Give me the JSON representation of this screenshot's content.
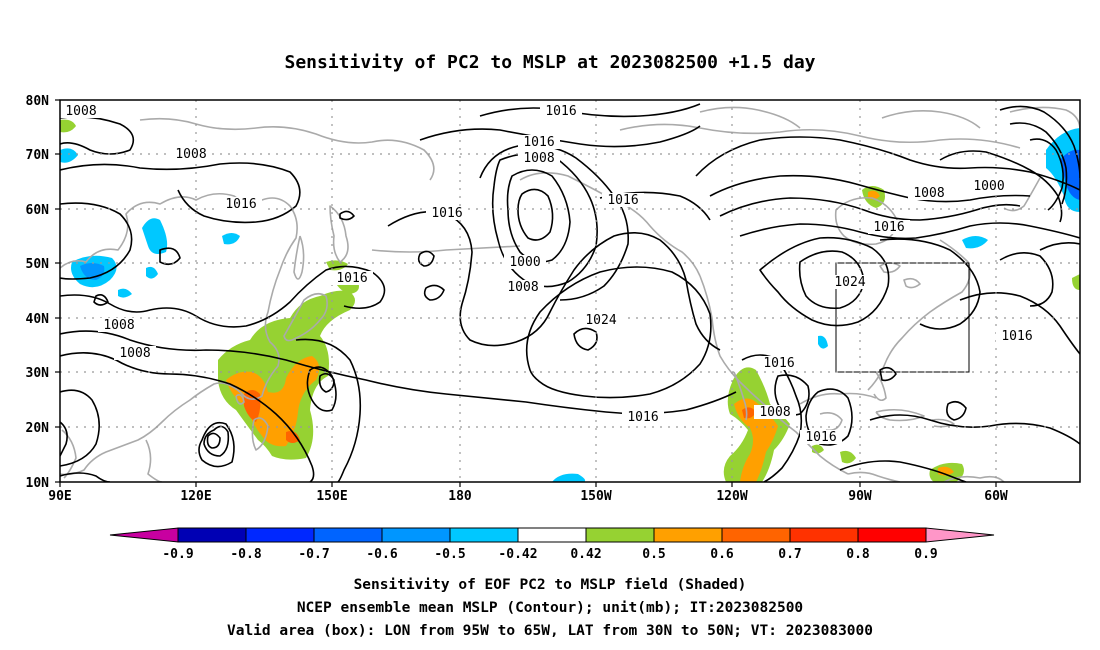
{
  "title": "Sensitivity of PC2 to MSLP at 2023082500 +1.5 day",
  "map": {
    "lat_labels": [
      "80N",
      "70N",
      "60N",
      "50N",
      "40N",
      "30N",
      "20N",
      "10N"
    ],
    "lon_labels": [
      "90E",
      "120E",
      "150E",
      "180",
      "150W",
      "120W",
      "90W",
      "60W"
    ],
    "valid_box": {
      "lon": [
        "95W",
        "65W"
      ],
      "lat": [
        "30N",
        "50N"
      ]
    },
    "contour_labels": [
      {
        "text": "1008",
        "region": "far northwest"
      },
      {
        "text": "1008",
        "region": "Siberia"
      },
      {
        "text": "1016",
        "region": "Siberia south"
      },
      {
        "text": "1016",
        "region": "Kamchatka"
      },
      {
        "text": "1008",
        "region": "China north"
      },
      {
        "text": "1008",
        "region": "China south"
      },
      {
        "text": "1016",
        "region": "Bering Sea"
      },
      {
        "text": "1016",
        "region": "Arctic top"
      },
      {
        "text": "1016",
        "region": "Gulf of Alaska north"
      },
      {
        "text": "1008",
        "region": "Gulf of Alaska low ring"
      },
      {
        "text": "1000",
        "region": "Gulf of Alaska low center"
      },
      {
        "text": "1008",
        "region": "Gulf of Alaska low south"
      },
      {
        "text": "1016",
        "region": "Alaska panhandle"
      },
      {
        "text": "1024",
        "region": "North Pacific high"
      },
      {
        "text": "1016",
        "region": "Subtropical Pacific"
      },
      {
        "text": "1016",
        "region": "Baja California"
      },
      {
        "text": "1008",
        "region": "Mexico west"
      },
      {
        "text": "1016",
        "region": "Mexico south"
      },
      {
        "text": "1008",
        "region": "Hudson Bay"
      },
      {
        "text": "1000",
        "region": "Labrador"
      },
      {
        "text": "1016",
        "region": "Great Lakes north"
      },
      {
        "text": "1024",
        "region": "Great Lakes"
      },
      {
        "text": "1016",
        "region": "Western Atlantic"
      }
    ]
  },
  "colorbar": {
    "labels": [
      "-0.9",
      "-0.8",
      "-0.7",
      "-0.6",
      "-0.5",
      "-0.42",
      "0.42",
      "0.5",
      "0.6",
      "0.7",
      "0.8",
      "0.9"
    ],
    "colors": [
      "#0000b4",
      "#0028ff",
      "#0064ff",
      "#0096ff",
      "#00c8ff",
      "#ffffff",
      "#96d232",
      "#ffa000",
      "#ff6400",
      "#ff3200",
      "#ff0000"
    ],
    "under_color": "#c800a0",
    "over_color": "#ff96c8"
  },
  "caption": {
    "line1": "Sensitivity of EOF PC2 to MSLP field (Shaded)",
    "line2": "NCEP ensemble mean MSLP (Contour); unit(mb); IT:2023082500",
    "line3": "Valid area (box): LON from 95W to 65W, LAT from 30N to 50N; VT: 2023083000"
  }
}
